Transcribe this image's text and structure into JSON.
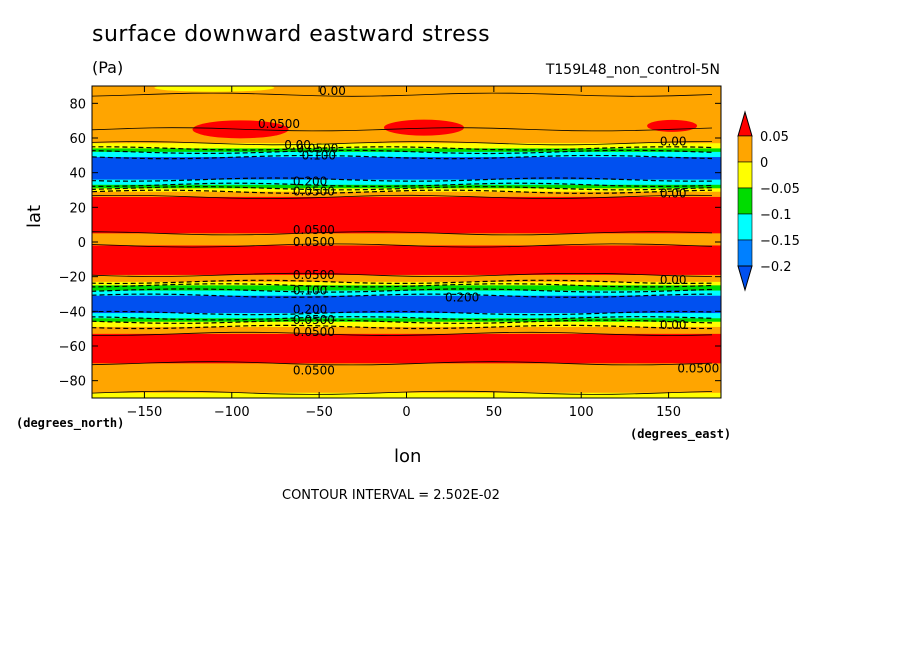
{
  "chart_data": {
    "type": "heatmap",
    "title": "surface downward eastward stress",
    "subtitle": "(Pa)",
    "run_label": "T159L48_non_control-5N",
    "xlabel": "lon",
    "ylabel": "lat",
    "x_units": "(degrees_east)",
    "y_units": "(degrees_north)",
    "xlim": [
      -180,
      180
    ],
    "ylim": [
      -90,
      90
    ],
    "x_ticks": [
      -150,
      -100,
      -50,
      0,
      50,
      100,
      150
    ],
    "y_ticks": [
      80,
      60,
      40,
      20,
      0,
      -20,
      -40,
      -60,
      -80
    ],
    "contour_interval_text": "CONTOUR INTERVAL = 2.502E-02",
    "colorbar": {
      "labels": [
        "0.05",
        "0",
        "−0.05",
        "−0.1",
        "−0.15",
        "−0.2"
      ],
      "colors": [
        "#ff0000",
        "#ffa500",
        "#ffff00",
        "#00dc00",
        "#00ffff",
        "#0080ff",
        "#0050f0"
      ]
    },
    "zonal_bands": [
      {
        "lat_from": 90,
        "lat_to": 85,
        "class": "0 to 0.05"
      },
      {
        "lat_from": 85,
        "lat_to": 65,
        "class": "0 to 0.05"
      },
      {
        "lat_from": 65,
        "lat_to": 57,
        "class": "0 to 0.05"
      },
      {
        "lat_from": 57,
        "lat_to": 54,
        "class": "-0.05 to 0"
      },
      {
        "lat_from": 54,
        "lat_to": 52,
        "class": "-0.1 to -0.05"
      },
      {
        "lat_from": 52,
        "lat_to": 49,
        "class": "-0.15 to -0.1"
      },
      {
        "lat_from": 49,
        "lat_to": 36,
        "class": "< -0.2"
      },
      {
        "lat_from": 36,
        "lat_to": 33,
        "class": "-0.15 to -0.1"
      },
      {
        "lat_from": 33,
        "lat_to": 31,
        "class": "-0.1 to -0.05"
      },
      {
        "lat_from": 31,
        "lat_to": 29,
        "class": "-0.05 to 0"
      },
      {
        "lat_from": 29,
        "lat_to": 26,
        "class": "0 to 0.05"
      },
      {
        "lat_from": 26,
        "lat_to": 5,
        "class": "> 0.05"
      },
      {
        "lat_from": 5,
        "lat_to": -2,
        "class": "0 to 0.05"
      },
      {
        "lat_from": -2,
        "lat_to": -19,
        "class": "> 0.05"
      },
      {
        "lat_from": -19,
        "lat_to": -23,
        "class": "0 to 0.05"
      },
      {
        "lat_from": -23,
        "lat_to": -25,
        "class": "-0.05 to 0"
      },
      {
        "lat_from": -25,
        "lat_to": -28,
        "class": "-0.1 to -0.05"
      },
      {
        "lat_from": -28,
        "lat_to": -31,
        "class": "-0.15 to -0.1"
      },
      {
        "lat_from": -31,
        "lat_to": -41,
        "class": "< -0.2"
      },
      {
        "lat_from": -41,
        "lat_to": -44,
        "class": "-0.15 to -0.1"
      },
      {
        "lat_from": -44,
        "lat_to": -46,
        "class": "-0.1 to -0.05"
      },
      {
        "lat_from": -46,
        "lat_to": -49,
        "class": "-0.05 to 0"
      },
      {
        "lat_from": -49,
        "lat_to": -53,
        "class": "0 to 0.05"
      },
      {
        "lat_from": -53,
        "lat_to": -70,
        "class": "> 0.05"
      },
      {
        "lat_from": -70,
        "lat_to": -87,
        "class": "0 to 0.05"
      },
      {
        "lat_from": -87,
        "lat_to": -90,
        "class": "-0.05 to 0"
      }
    ],
    "contour_labels": [
      {
        "text": "0.00",
        "lon": -50,
        "lat": 87
      },
      {
        "text": "0.0500",
        "lon": -85,
        "lat": 68
      },
      {
        "text": "0.00",
        "lon": -70,
        "lat": 56
      },
      {
        "text": "0.0500",
        "lon": -63,
        "lat": 54
      },
      {
        "text": "0.100",
        "lon": -60,
        "lat": 50
      },
      {
        "text": "0.00",
        "lon": 145,
        "lat": 58
      },
      {
        "text": "0.200",
        "lon": -65,
        "lat": 35
      },
      {
        "text": "0.0500",
        "lon": -65,
        "lat": 29
      },
      {
        "text": "0.00",
        "lon": 145,
        "lat": 28
      },
      {
        "text": "0.0500",
        "lon": -65,
        "lat": 7
      },
      {
        "text": "0.0500",
        "lon": -65,
        "lat": 0
      },
      {
        "text": "0.0500",
        "lon": -65,
        "lat": -19
      },
      {
        "text": "0.100",
        "lon": -65,
        "lat": -28
      },
      {
        "text": "0.00",
        "lon": 145,
        "lat": -22
      },
      {
        "text": "0.200",
        "lon": 22,
        "lat": -32
      },
      {
        "text": "0.200",
        "lon": -65,
        "lat": -39
      },
      {
        "text": "0.0500",
        "lon": -65,
        "lat": -45
      },
      {
        "text": "0.00",
        "lon": 145,
        "lat": -48
      },
      {
        "text": "0.0500",
        "lon": -65,
        "lat": -52
      },
      {
        "text": "0.0500",
        "lon": -65,
        "lat": -74
      },
      {
        "text": "0.0500",
        "lon": 155,
        "lat": -73
      }
    ]
  }
}
